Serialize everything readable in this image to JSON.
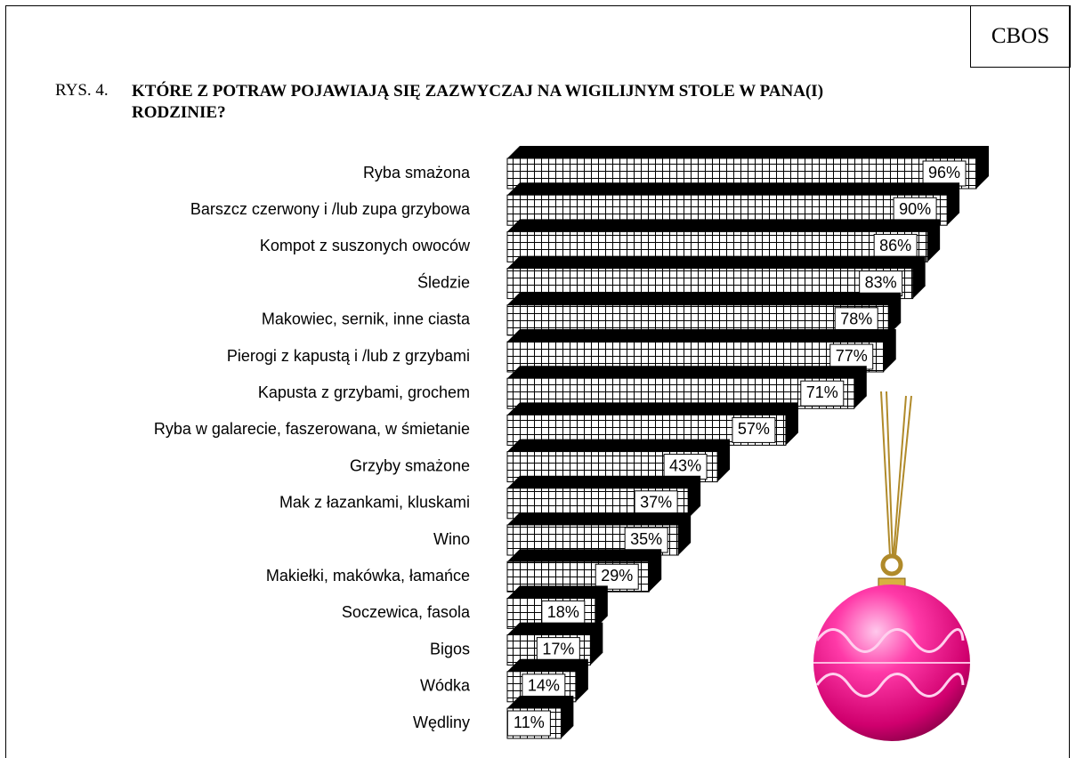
{
  "brand": "CBOS",
  "chart_data": {
    "type": "bar",
    "orientation": "horizontal",
    "figure_label": "RYS. 4.",
    "title": "KTÓRE Z POTRAW POJAWIAJĄ SIĘ ZAZWYCZAJ NA WIGILIJNYM STOLE W PANA(I) RODZINIE?",
    "categories": [
      "Ryba smażona",
      "Barszcz czerwony i /lub zupa grzybowa",
      "Kompot z suszonych owoców",
      "Śledzie",
      "Makowiec, sernik, inne ciasta",
      "Pierogi z kapustą i /lub z grzybami",
      "Kapusta z grzybami, grochem",
      "Ryba w galarecie, faszerowana, w śmietanie",
      "Grzyby smażone",
      "Mak z łazankami, kluskami",
      "Wino",
      "Makiełki, makówka, łamańce",
      "Soczewica, fasola",
      "Bigos",
      "Wódka",
      "Wędliny"
    ],
    "values": [
      96,
      90,
      86,
      83,
      78,
      77,
      71,
      57,
      43,
      37,
      35,
      29,
      18,
      17,
      14,
      11
    ],
    "value_labels": [
      "96%",
      "90%",
      "86%",
      "83%",
      "78%",
      "77%",
      "71%",
      "57%",
      "43%",
      "37%",
      "35%",
      "29%",
      "18%",
      "17%",
      "14%",
      "11%"
    ],
    "color": "#ffffff"
  }
}
